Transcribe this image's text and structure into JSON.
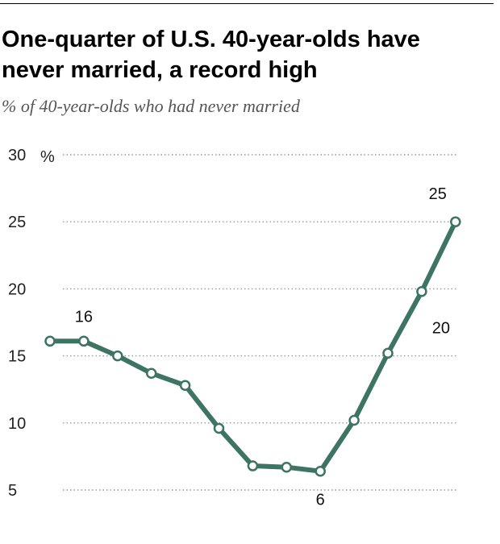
{
  "title": "One-quarter of U.S. 40-year-olds have never married, a record high",
  "subtitle": "% of 40-year-olds who had never married",
  "colors": {
    "line": "#3d7463",
    "grid": "#999999"
  },
  "chart_data": {
    "type": "line",
    "title": "One-quarter of U.S. 40-year-olds have never married, a record high",
    "subtitle": "% of 40-year-olds who had never married",
    "y_unit": "%",
    "ylim": [
      5,
      30
    ],
    "yticks": [
      5,
      10,
      15,
      20,
      25,
      30
    ],
    "grid": true,
    "series": [
      {
        "values": [
          16.1,
          16.1,
          15.0,
          13.7,
          12.8,
          9.6,
          6.8,
          6.7,
          6.4,
          10.2,
          15.2,
          19.8,
          25.0
        ]
      }
    ],
    "annotations": [
      {
        "index": 1,
        "text": "16"
      },
      {
        "index": 8,
        "text": "6"
      },
      {
        "index": 11,
        "text": "20"
      },
      {
        "index": 12,
        "text": "25"
      }
    ]
  }
}
